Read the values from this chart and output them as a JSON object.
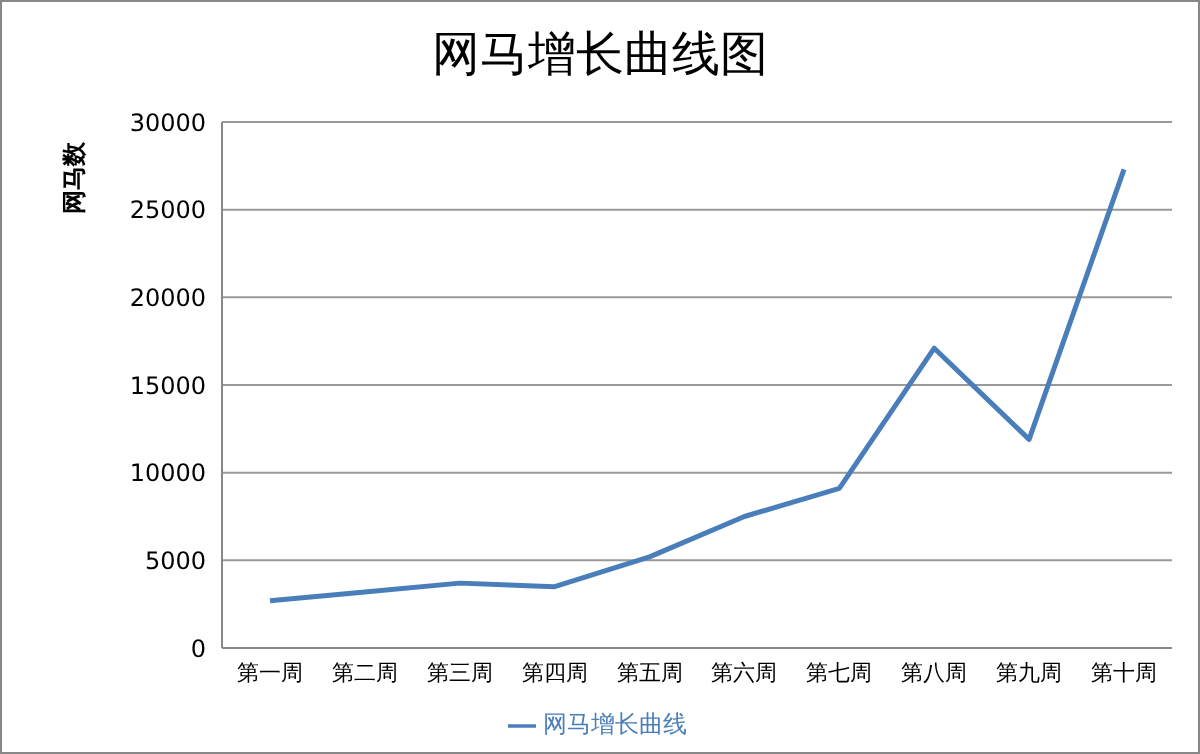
{
  "chart_data": {
    "type": "line",
    "title": "网马增长曲线图",
    "ylabel": "网马数",
    "categories": [
      "第一周",
      "第二周",
      "第三周",
      "第四周",
      "第五周",
      "第六周",
      "第七周",
      "第八周",
      "第九周",
      "第十周"
    ],
    "series": [
      {
        "name": "网马增长曲线",
        "color": "#4a7ebb",
        "values": [
          2700,
          3200,
          3700,
          3500,
          5200,
          7500,
          9100,
          17100,
          11900,
          27300
        ]
      }
    ],
    "ylim": [
      0,
      30000
    ],
    "yticks": [
      0,
      5000,
      10000,
      15000,
      20000,
      25000,
      30000
    ],
    "grid": "y",
    "legend": "bottom",
    "marker": "none",
    "line_style": "solid"
  }
}
